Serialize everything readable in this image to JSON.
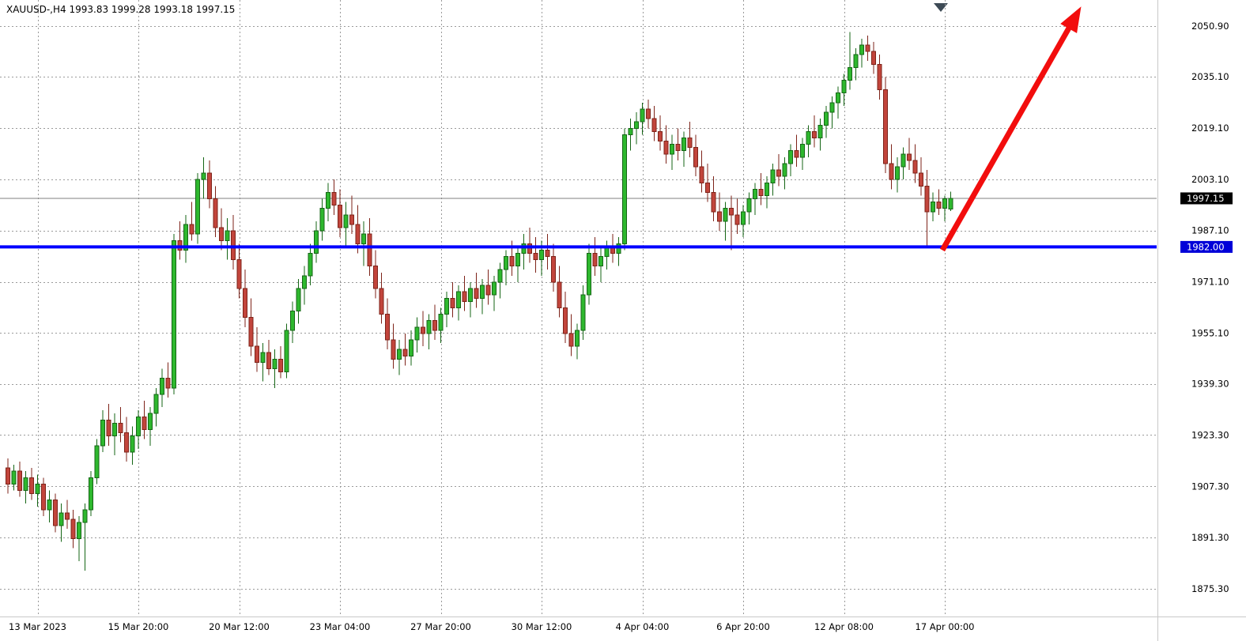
{
  "chart_data": {
    "type": "candlestick",
    "symbol": "XAUUSD-",
    "timeframe": "H4",
    "info_line": "XAUUSD-,H4 1993.83 1999.28 1993.18 1997.15",
    "current_candle": {
      "open": "1993.83",
      "high": "1999.28",
      "low": "1993.18",
      "close": "1997.15"
    },
    "y_axis": {
      "labels": [
        "2050.90",
        "2035.10",
        "2019.10",
        "2003.10",
        "1987.10",
        "1971.10",
        "1955.10",
        "1939.30",
        "1923.30",
        "1907.30",
        "1891.30",
        "1875.30"
      ],
      "current_price": 1997.15,
      "current_price_label": "1997.15",
      "ylim": [
        1866.7,
        2059.0
      ]
    },
    "x_axis": {
      "labels": [
        {
          "text": "13 Mar 2023",
          "index": 5
        },
        {
          "text": "15 Mar 20:00",
          "index": 22
        },
        {
          "text": "20 Mar 12:00",
          "index": 39
        },
        {
          "text": "23 Mar 04:00",
          "index": 56
        },
        {
          "text": "27 Mar 20:00",
          "index": 73
        },
        {
          "text": "30 Mar 12:00",
          "index": 90
        },
        {
          "text": "4 Apr 04:00",
          "index": 107
        },
        {
          "text": "6 Apr 20:00",
          "index": 124
        },
        {
          "text": "12 Apr 08:00",
          "index": 141
        },
        {
          "text": "17 Apr 00:00",
          "index": 158
        }
      ]
    },
    "candles": [
      [
        1913,
        1916,
        1905,
        1908
      ],
      [
        1908,
        1914,
        1906,
        1912
      ],
      [
        1912,
        1915,
        1904,
        1906
      ],
      [
        1906,
        1912,
        1902,
        1910
      ],
      [
        1910,
        1913,
        1903,
        1905
      ],
      [
        1905,
        1911,
        1901,
        1908
      ],
      [
        1908,
        1910,
        1898,
        1900
      ],
      [
        1900,
        1906,
        1896,
        1903
      ],
      [
        1903,
        1905,
        1893,
        1895
      ],
      [
        1895,
        1902,
        1890,
        1899
      ],
      [
        1899,
        1903,
        1894,
        1897
      ],
      [
        1897,
        1900,
        1888,
        1891
      ],
      [
        1891,
        1898,
        1884,
        1896
      ],
      [
        1896,
        1902,
        1881,
        1900
      ],
      [
        1900,
        1912,
        1898,
        1910
      ],
      [
        1910,
        1922,
        1908,
        1920
      ],
      [
        1920,
        1931,
        1918,
        1928
      ],
      [
        1928,
        1933,
        1920,
        1923
      ],
      [
        1923,
        1930,
        1917,
        1927
      ],
      [
        1927,
        1932,
        1921,
        1924
      ],
      [
        1924,
        1929,
        1915,
        1918
      ],
      [
        1918,
        1926,
        1914,
        1923
      ],
      [
        1923,
        1931,
        1919,
        1929
      ],
      [
        1929,
        1934,
        1922,
        1925
      ],
      [
        1925,
        1932,
        1920,
        1930
      ],
      [
        1930,
        1938,
        1926,
        1936
      ],
      [
        1936,
        1944,
        1932,
        1941
      ],
      [
        1941,
        1946,
        1935,
        1938
      ],
      [
        1938,
        1986,
        1936,
        1984
      ],
      [
        1984,
        1990,
        1978,
        1981
      ],
      [
        1981,
        1992,
        1977,
        1989
      ],
      [
        1989,
        1996,
        1984,
        1986
      ],
      [
        1986,
        2005,
        1983,
        2003
      ],
      [
        2003,
        2010,
        1997,
        2005
      ],
      [
        2005,
        2009,
        1994,
        1997
      ],
      [
        1997,
        2001,
        1985,
        1988
      ],
      [
        1988,
        1994,
        1981,
        1984
      ],
      [
        1984,
        1991,
        1978,
        1987
      ],
      [
        1987,
        1992,
        1975,
        1978
      ],
      [
        1978,
        1983,
        1966,
        1969
      ],
      [
        1969,
        1975,
        1957,
        1960
      ],
      [
        1960,
        1966,
        1948,
        1951
      ],
      [
        1951,
        1957,
        1943,
        1946
      ],
      [
        1946,
        1952,
        1940,
        1949
      ],
      [
        1949,
        1953,
        1942,
        1944
      ],
      [
        1944,
        1950,
        1938,
        1947
      ],
      [
        1947,
        1951,
        1941,
        1943
      ],
      [
        1943,
        1958,
        1941,
        1956
      ],
      [
        1956,
        1965,
        1952,
        1962
      ],
      [
        1962,
        1972,
        1958,
        1969
      ],
      [
        1969,
        1976,
        1964,
        1973
      ],
      [
        1973,
        1983,
        1970,
        1980
      ],
      [
        1980,
        1990,
        1977,
        1987
      ],
      [
        1987,
        1997,
        1984,
        1994
      ],
      [
        1994,
        2002,
        1990,
        1999
      ],
      [
        1999,
        2003,
        1992,
        1995
      ],
      [
        1995,
        2000,
        1985,
        1988
      ],
      [
        1988,
        1996,
        1982,
        1992
      ],
      [
        1992,
        1998,
        1986,
        1989
      ],
      [
        1989,
        1995,
        1980,
        1983
      ],
      [
        1983,
        1990,
        1976,
        1986
      ],
      [
        1986,
        1991,
        1973,
        1976
      ],
      [
        1976,
        1981,
        1966,
        1969
      ],
      [
        1969,
        1974,
        1958,
        1961
      ],
      [
        1961,
        1966,
        1950,
        1953
      ],
      [
        1953,
        1958,
        1944,
        1947
      ],
      [
        1947,
        1953,
        1942,
        1950
      ],
      [
        1950,
        1955,
        1945,
        1948
      ],
      [
        1948,
        1956,
        1945,
        1953
      ],
      [
        1953,
        1960,
        1949,
        1957
      ],
      [
        1957,
        1962,
        1951,
        1955
      ],
      [
        1955,
        1961,
        1950,
        1959
      ],
      [
        1959,
        1964,
        1953,
        1956
      ],
      [
        1956,
        1963,
        1952,
        1961
      ],
      [
        1961,
        1968,
        1957,
        1966
      ],
      [
        1966,
        1971,
        1960,
        1963
      ],
      [
        1963,
        1970,
        1959,
        1968
      ],
      [
        1968,
        1973,
        1962,
        1965
      ],
      [
        1965,
        1971,
        1960,
        1969
      ],
      [
        1969,
        1974,
        1963,
        1966
      ],
      [
        1966,
        1972,
        1961,
        1970
      ],
      [
        1970,
        1975,
        1964,
        1967
      ],
      [
        1967,
        1973,
        1962,
        1971
      ],
      [
        1971,
        1977,
        1966,
        1975
      ],
      [
        1975,
        1981,
        1970,
        1979
      ],
      [
        1979,
        1984,
        1973,
        1976
      ],
      [
        1976,
        1982,
        1971,
        1980
      ],
      [
        1980,
        1986,
        1975,
        1983
      ],
      [
        1983,
        1988,
        1977,
        1980
      ],
      [
        1980,
        1985,
        1974,
        1978
      ],
      [
        1978,
        1984,
        1973,
        1981
      ],
      [
        1981,
        1986,
        1975,
        1979
      ],
      [
        1979,
        1983,
        1968,
        1971
      ],
      [
        1971,
        1976,
        1960,
        1963
      ],
      [
        1963,
        1968,
        1952,
        1955
      ],
      [
        1955,
        1961,
        1948,
        1951
      ],
      [
        1951,
        1958,
        1947,
        1956
      ],
      [
        1956,
        1970,
        1953,
        1967
      ],
      [
        1967,
        1983,
        1964,
        1980
      ],
      [
        1980,
        1985,
        1973,
        1976
      ],
      [
        1976,
        1982,
        1971,
        1979
      ],
      [
        1979,
        1984,
        1975,
        1982
      ],
      [
        1982,
        1986,
        1977,
        1980
      ],
      [
        1980,
        1985,
        1976,
        1983
      ],
      [
        1983,
        2019,
        1981,
        2017
      ],
      [
        2017,
        2022,
        2012,
        2019
      ],
      [
        2019,
        2024,
        2014,
        2021
      ],
      [
        2021,
        2027,
        2017,
        2025
      ],
      [
        2025,
        2028,
        2019,
        2022
      ],
      [
        2022,
        2026,
        2015,
        2018
      ],
      [
        2018,
        2023,
        2012,
        2015
      ],
      [
        2015,
        2020,
        2008,
        2011
      ],
      [
        2011,
        2017,
        2006,
        2014
      ],
      [
        2014,
        2019,
        2009,
        2012
      ],
      [
        2012,
        2018,
        2007,
        2016
      ],
      [
        2016,
        2021,
        2010,
        2013
      ],
      [
        2013,
        2017,
        2004,
        2007
      ],
      [
        2007,
        2012,
        1999,
        2002
      ],
      [
        2002,
        2008,
        1996,
        1999
      ],
      [
        1999,
        2004,
        1990,
        1993
      ],
      [
        1993,
        1999,
        1987,
        1990
      ],
      [
        1990,
        1996,
        1984,
        1994
      ],
      [
        1994,
        1998,
        1981,
        1992
      ],
      [
        1992,
        1997,
        1986,
        1989
      ],
      [
        1989,
        1995,
        1985,
        1993
      ],
      [
        1993,
        1999,
        1989,
        1997
      ],
      [
        1997,
        2002,
        1992,
        2000
      ],
      [
        2000,
        2005,
        1995,
        1998
      ],
      [
        1998,
        2004,
        1994,
        2002
      ],
      [
        2002,
        2008,
        1998,
        2006
      ],
      [
        2006,
        2011,
        2001,
        2004
      ],
      [
        2004,
        2010,
        2000,
        2008
      ],
      [
        2008,
        2014,
        2004,
        2012
      ],
      [
        2012,
        2017,
        2007,
        2010
      ],
      [
        2010,
        2016,
        2006,
        2014
      ],
      [
        2014,
        2020,
        2010,
        2018
      ],
      [
        2018,
        2023,
        2013,
        2016
      ],
      [
        2016,
        2022,
        2012,
        2020
      ],
      [
        2020,
        2026,
        2016,
        2024
      ],
      [
        2024,
        2029,
        2019,
        2027
      ],
      [
        2027,
        2032,
        2022,
        2030
      ],
      [
        2030,
        2036,
        2026,
        2034
      ],
      [
        2034,
        2049,
        2031,
        2038
      ],
      [
        2038,
        2044,
        2034,
        2042
      ],
      [
        2042,
        2047,
        2038,
        2045
      ],
      [
        2045,
        2048,
        2040,
        2043
      ],
      [
        2043,
        2046,
        2036,
        2039
      ],
      [
        2039,
        2042,
        2028,
        2031
      ],
      [
        2031,
        2035,
        2005,
        2008
      ],
      [
        2008,
        2014,
        2000,
        2003
      ],
      [
        2003,
        2010,
        1999,
        2007
      ],
      [
        2007,
        2013,
        2003,
        2011
      ],
      [
        2011,
        2016,
        2006,
        2009
      ],
      [
        2009,
        2014,
        2002,
        2005
      ],
      [
        2005,
        2010,
        1998,
        2001
      ],
      [
        2001,
        2006,
        1982,
        1993
      ],
      [
        1993,
        1999,
        1990,
        1996
      ],
      [
        1996,
        2000,
        1992,
        1994
      ],
      [
        1994,
        1998,
        1990,
        1997
      ],
      [
        1993.83,
        1999.28,
        1993.18,
        1997.15
      ]
    ],
    "annotations": {
      "support_line": {
        "price": 1982.0,
        "label": "1982.00",
        "color": "#0000ff",
        "tag_color": "#0000d8"
      },
      "trend_arrow": {
        "from": {
          "index": 157.6,
          "price": 1981.0
        },
        "to": {
          "index": 181,
          "price": 2057.0
        },
        "color": "#f20d0d"
      }
    },
    "colors": {
      "background": "#ffffff",
      "grid": "#9a9a9a",
      "bull": "#2eb82e",
      "bull_border": "#156615",
      "bear": "#c2453c",
      "bear_border": "#7e2319",
      "current_price_line": "#808080",
      "price_tag_bg": "#000000",
      "axis_text": "#000000"
    }
  }
}
